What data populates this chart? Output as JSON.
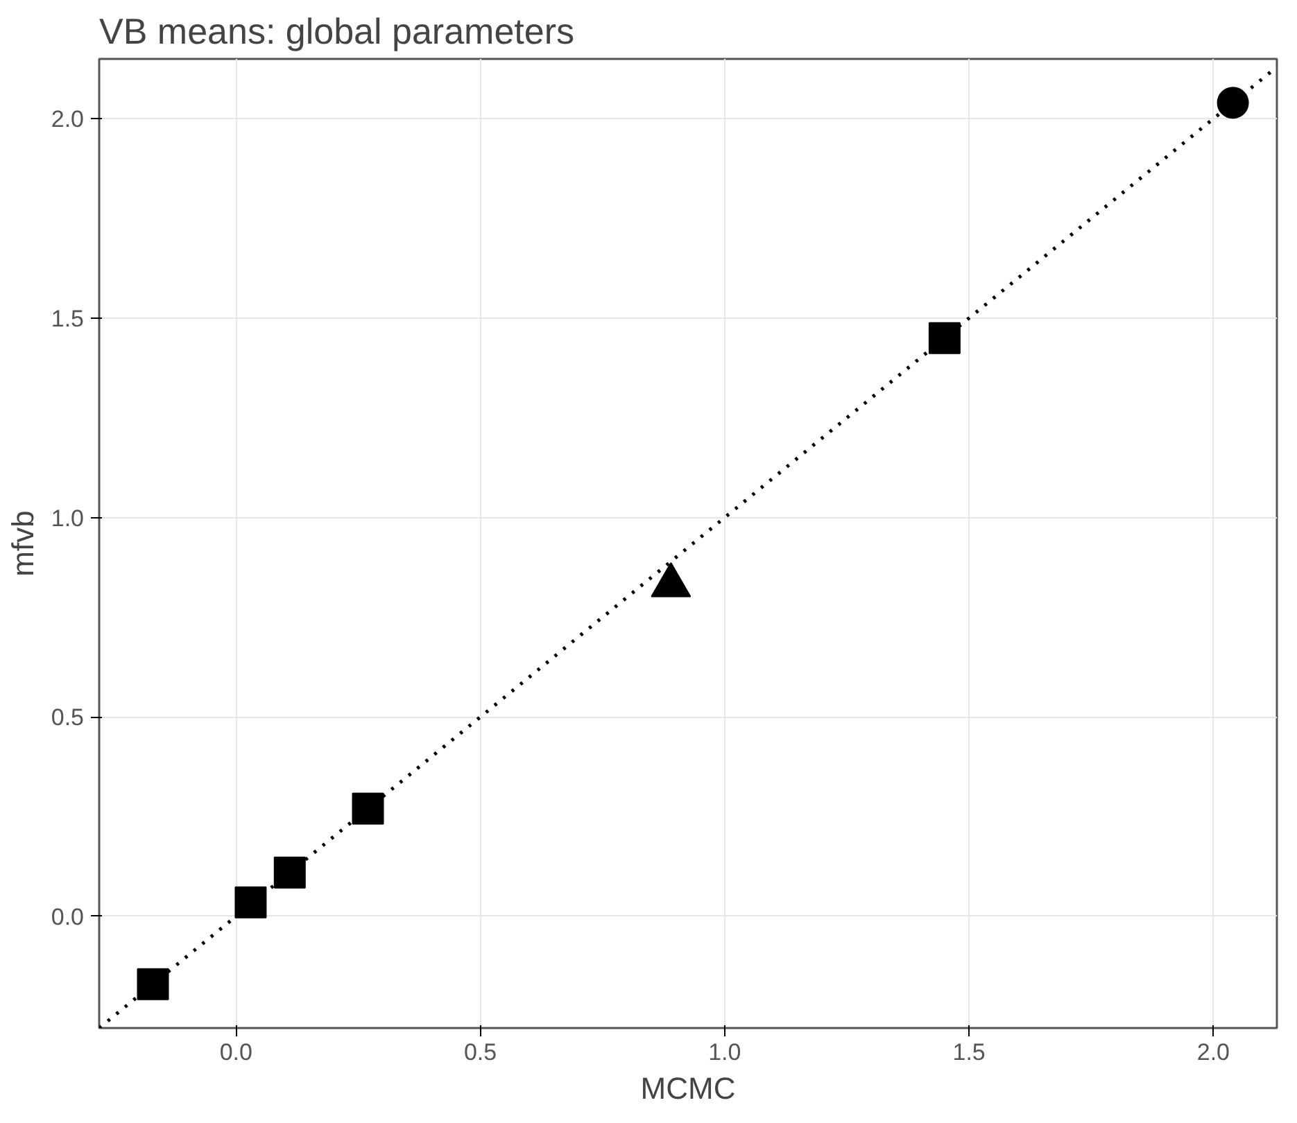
{
  "chart_data": {
    "type": "scatter",
    "title": "VB means: global parameters",
    "xlabel": "MCMC",
    "ylabel": "mfvb",
    "xlim": [
      -0.28,
      2.13
    ],
    "ylim": [
      -0.28,
      2.15
    ],
    "xticks": [
      {
        "value": 0,
        "label": "0.0"
      },
      0.5,
      {
        "value": 1,
        "label": "1.0"
      },
      1.5,
      {
        "value": 2,
        "label": "2.0"
      }
    ],
    "yticks": [
      {
        "value": 0,
        "label": "0.0"
      },
      0.5,
      {
        "value": 1,
        "label": "1.0"
      },
      1.5,
      {
        "value": 2,
        "label": "2.0"
      }
    ],
    "grid": true,
    "series": [
      {
        "type": "line",
        "color": "#000000",
        "line_style": "dotted",
        "x": [
          -0.28,
          2.13
        ],
        "values": [
          -0.28,
          2.13
        ]
      },
      {
        "color": "#000000",
        "marker": "square",
        "x": [
          -0.17,
          0.03,
          0.11,
          0.27,
          1.45
        ],
        "values": [
          -0.17,
          0.035,
          0.11,
          0.27,
          1.45
        ]
      },
      {
        "color": "#000000",
        "marker": "triangle",
        "x": [
          0.89
        ],
        "values": [
          0.83
        ]
      },
      {
        "color": "#000000",
        "marker": "circle",
        "x": [
          2.04
        ],
        "values": [
          2.04
        ]
      }
    ]
  }
}
